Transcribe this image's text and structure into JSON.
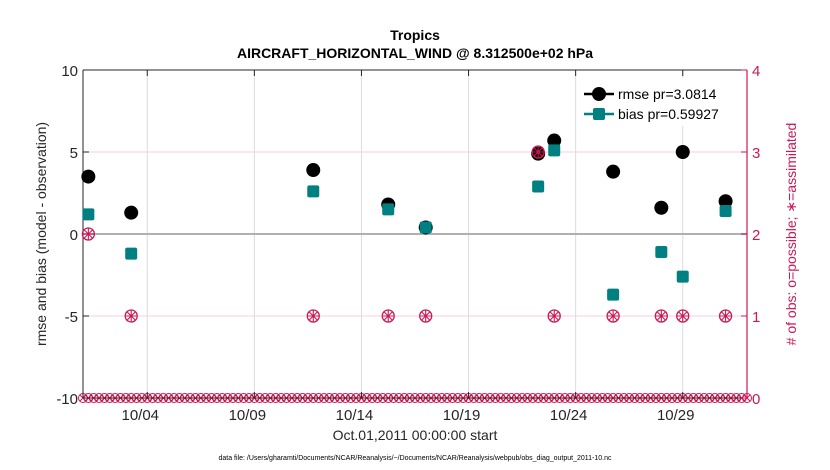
{
  "chart_data": {
    "type": "scatter",
    "title": "Tropics",
    "subtitle": "AIRCRAFT_HORIZONTAL_WIND @ 8.312500e+02 hPa",
    "xlabel": "Oct.01,2011 00:00:00 start",
    "ylabel": "rmse and bias (model - observation)",
    "y2label": "# of obs: o=possible; ∗=assimilated",
    "footer": "data file: /Users/gharamti/Documents/NCAR/Reanalysis/~/Documents/NCAR/Reanalysis/webpub/obs_diag_output_2011-10.nc",
    "xlim_days": [
      0,
      31
    ],
    "ylim": [
      -10,
      10
    ],
    "y2lim": [
      0,
      4
    ],
    "grid": true,
    "legend_position": "top-right",
    "x_ticks": [
      {
        "day": 3,
        "label": "10/04"
      },
      {
        "day": 8,
        "label": "10/09"
      },
      {
        "day": 13,
        "label": "10/14"
      },
      {
        "day": 18,
        "label": "10/19"
      },
      {
        "day": 23,
        "label": "10/24"
      },
      {
        "day": 28,
        "label": "10/29"
      }
    ],
    "y_ticks": [
      {
        "value": 10,
        "label": "10"
      },
      {
        "value": 5,
        "label": "5"
      },
      {
        "value": 0,
        "label": "0"
      },
      {
        "value": -5,
        "label": "-5"
      },
      {
        "value": -10,
        "label": "-10"
      }
    ],
    "y2_ticks": [
      {
        "value": 4,
        "label": "4"
      },
      {
        "value": 3,
        "label": "3"
      },
      {
        "value": 2,
        "label": "2"
      },
      {
        "value": 1,
        "label": "1"
      },
      {
        "value": 0,
        "label": "0"
      }
    ],
    "series": [
      {
        "name": "rmse",
        "legend": "rmse pr=3.0814",
        "color": "#000000",
        "marker": "circle",
        "x_days": [
          0.25,
          2.25,
          10.75,
          14.25,
          16.0,
          21.25,
          22.0,
          24.75,
          27.0,
          28.0,
          30.0
        ],
        "values": [
          3.5,
          1.3,
          3.9,
          1.8,
          0.4,
          4.9,
          5.7,
          3.8,
          1.6,
          5.0,
          2.0
        ]
      },
      {
        "name": "bias",
        "legend": "bias pr=0.59927",
        "color": "#008080",
        "marker": "square",
        "x_days": [
          0.25,
          2.25,
          10.75,
          14.25,
          16.0,
          21.25,
          22.0,
          24.75,
          27.0,
          28.0,
          30.0
        ],
        "values": [
          1.2,
          -1.2,
          2.6,
          1.5,
          0.4,
          2.9,
          5.1,
          -3.7,
          -1.1,
          -2.6,
          1.4
        ]
      },
      {
        "name": "obs_assimilated",
        "axis": "right",
        "color": "#cc1855",
        "marker": "asterisk-circle",
        "x_days": [
          0.25,
          2.25,
          10.75,
          14.25,
          16.0,
          21.25,
          22.0,
          24.75,
          27.0,
          28.0,
          30.0
        ],
        "values": [
          2,
          1,
          1,
          1,
          1,
          3,
          1,
          1,
          1,
          1,
          1
        ]
      },
      {
        "name": "obs_possible_zero",
        "axis": "right",
        "color": "#cc1855",
        "marker": "x-circle",
        "x_step_days": 0.25,
        "value": 0
      }
    ]
  }
}
